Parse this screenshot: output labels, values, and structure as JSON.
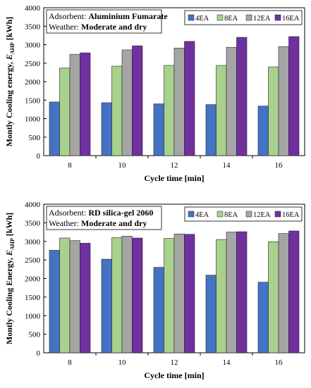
{
  "colors": {
    "4EA": "#4472c4",
    "8EA": "#a9d18e",
    "12EA": "#a5a5a5",
    "16EA": "#7030a0"
  },
  "chart_data": [
    {
      "type": "bar",
      "categories": [
        "8",
        "10",
        "12",
        "14",
        "16"
      ],
      "series": [
        {
          "name": "4EA",
          "values": [
            1450,
            1430,
            1400,
            1380,
            1340
          ]
        },
        {
          "name": "8EA",
          "values": [
            2370,
            2420,
            2440,
            2440,
            2400
          ]
        },
        {
          "name": "12EA",
          "values": [
            2740,
            2860,
            2910,
            2930,
            2950
          ]
        },
        {
          "name": "16EA",
          "values": [
            2780,
            2970,
            3090,
            3200,
            3220
          ]
        }
      ],
      "xlabel": "Cycle time [min]",
      "ylabel_main": "Montly Cooling energy, ",
      "ylabel_sym": "E",
      "ylabel_sub": "AHP",
      "ylabel_unit": " [kWh]",
      "ylim": [
        0,
        4000
      ],
      "yticks": [
        "0",
        "500",
        "1000",
        "1500",
        "2000",
        "2500",
        "3000",
        "3500",
        "4000"
      ],
      "legend_placement": "top-right",
      "grid": false,
      "annotation": {
        "line1_label": "Adsorbent: ",
        "line1_value": "Aluminium Fumarate",
        "line2_label": "Weather: ",
        "line2_value": "Moderate and dry"
      }
    },
    {
      "type": "bar",
      "categories": [
        "8",
        "10",
        "12",
        "14",
        "16"
      ],
      "series": [
        {
          "name": "4EA",
          "values": [
            2760,
            2520,
            2300,
            2090,
            1900
          ]
        },
        {
          "name": "8EA",
          "values": [
            3090,
            3100,
            3080,
            3050,
            2990
          ]
        },
        {
          "name": "12EA",
          "values": [
            3020,
            3140,
            3200,
            3250,
            3210
          ]
        },
        {
          "name": "16EA",
          "values": [
            2950,
            3090,
            3190,
            3260,
            3280
          ]
        }
      ],
      "xlabel": "Cycle time [min]",
      "ylabel_main": "Montly Cooling Energy, ",
      "ylabel_sym": "E",
      "ylabel_sub": "AHP",
      "ylabel_unit": " [kWh]",
      "ylim": [
        0,
        4000
      ],
      "yticks": [
        "0",
        "500",
        "1000",
        "1500",
        "2000",
        "2500",
        "3000",
        "3500",
        "4000"
      ],
      "legend_placement": "top-right",
      "grid": false,
      "annotation": {
        "line1_label": "Adsorbent: ",
        "line1_value": "RD silica-gel 2060",
        "line2_label": "Weather: ",
        "line2_value": "Moderate and dry"
      }
    }
  ]
}
